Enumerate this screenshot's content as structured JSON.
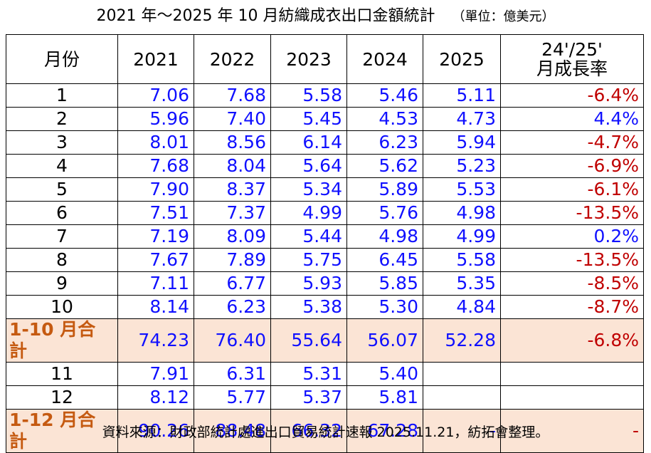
{
  "title": "2021 年～2025 年 10 月紡織成衣出口金額統計",
  "unit": "（單位：億美元）",
  "table": {
    "header": [
      "月份",
      "2021",
      "2022",
      "2023",
      "2024",
      "2025",
      "24'/25'\n月成長率"
    ],
    "rows": [
      [
        "1",
        "7.06",
        "7.68",
        "5.58",
        "5.46",
        "5.11",
        "-6.4%"
      ],
      [
        "2",
        "5.96",
        "7.40",
        "5.45",
        "4.53",
        "4.73",
        "4.4%"
      ],
      [
        "3",
        "8.01",
        "8.56",
        "6.14",
        "6.23",
        "5.94",
        "-4.7%"
      ],
      [
        "4",
        "7.68",
        "8.04",
        "5.64",
        "5.62",
        "5.23",
        "-6.9%"
      ],
      [
        "5",
        "7.90",
        "8.37",
        "5.34",
        "5.89",
        "5.53",
        "-6.1%"
      ],
      [
        "6",
        "7.51",
        "7.37",
        "4.99",
        "5.76",
        "4.98",
        "-13.5%"
      ],
      [
        "7",
        "7.19",
        "8.09",
        "5.44",
        "4.98",
        "4.99",
        "0.2%"
      ],
      [
        "8",
        "7.67",
        "7.89",
        "5.75",
        "6.45",
        "5.58",
        "-13.5%"
      ],
      [
        "9",
        "7.11",
        "6.77",
        "5.93",
        "5.85",
        "5.35",
        "-8.5%"
      ],
      [
        "10",
        "8.14",
        "6.23",
        "5.38",
        "5.30",
        "4.84",
        "-8.7%"
      ],
      [
        "1-10 月合計",
        "74.23",
        "76.40",
        "55.64",
        "56.07",
        "52.28",
        "-6.8%"
      ],
      [
        "11",
        "7.91",
        "6.31",
        "5.31",
        "5.40",
        null,
        null
      ],
      [
        "12",
        "8.12",
        "5.77",
        "5.37",
        "5.81",
        null,
        null
      ],
      [
        "1-12 月合計",
        "90.26",
        "88.48",
        "66.32",
        "67.28",
        "-",
        "-"
      ]
    ],
    "highlight_rows": [
      10,
      13
    ]
  },
  "note": "資料來源：財政部統計處進出口貿易統計速報 2025.11.21，紡拓會整理。"
}
